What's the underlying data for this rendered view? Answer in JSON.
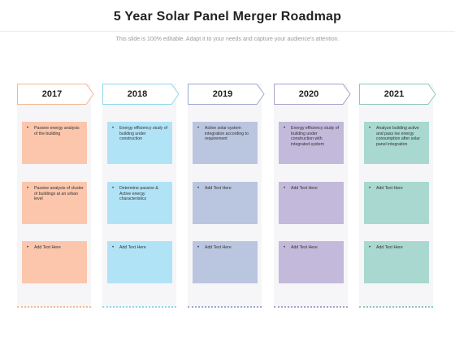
{
  "title": "5 Year Solar Panel Merger  Roadmap",
  "subtitle": "This slide is 100% editable. Adapt it to your needs and capture your audience's attention.",
  "columns": [
    {
      "year": "2017",
      "accent": "#f4b893",
      "card_color": "#fbc6ac",
      "items": [
        "Passive energy analysis of the building",
        "Passive analysis of cluster of buildings at an urban level",
        "Add Text Here"
      ]
    },
    {
      "year": "2018",
      "accent": "#8fd8ec",
      "card_color": "#b1e3f6",
      "items": [
        "Energy efficiency study of building under construction",
        "Determine passive & Active energy characteristics",
        "Add Text Here"
      ]
    },
    {
      "year": "2019",
      "accent": "#9aaad0",
      "card_color": "#bac6e0",
      "items": [
        "Active solar system integration according to requirement",
        "Add Text Here",
        "Add Text Here"
      ]
    },
    {
      "year": "2020",
      "accent": "#ab9fca",
      "card_color": "#c2b9db",
      "items": [
        "Energy efficiency study of building under construction with integrated system",
        "Add Text Here",
        "Add Text Here"
      ]
    },
    {
      "year": "2021",
      "accent": "#8dc7bd",
      "card_color": "#a8d8cf",
      "items": [
        "Analyze building active and pass    ive energy consumption after solar panel integration",
        "Add Text Here",
        "Add Text Here"
      ]
    }
  ]
}
